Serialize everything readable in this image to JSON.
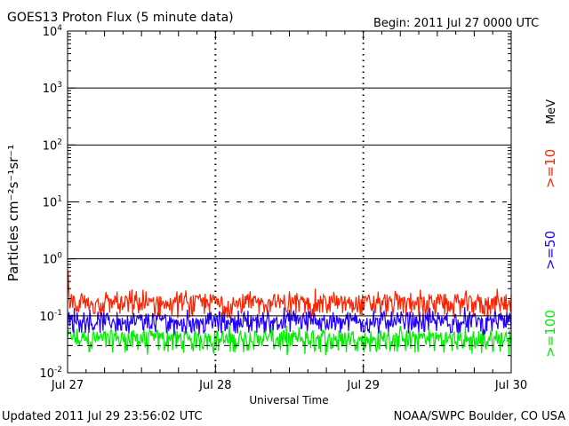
{
  "chart_data": {
    "type": "line",
    "title": "GOES13 Proton Flux (5 minute data)",
    "begin_label": "Begin: 2011 Jul 27 0000 UTC",
    "xlabel": "Universal Time",
    "ylabel": "Particles cm⁻²s⁻¹sr⁻¹",
    "yscale": "log",
    "ylim": [
      0.01,
      10000
    ],
    "yticks": [
      {
        "base": "10",
        "exp": "-2"
      },
      {
        "base": "10",
        "exp": "-1"
      },
      {
        "base": "10",
        "exp": "0"
      },
      {
        "base": "10",
        "exp": "1"
      },
      {
        "base": "10",
        "exp": "2"
      },
      {
        "base": "10",
        "exp": "3"
      },
      {
        "base": "10",
        "exp": "4"
      }
    ],
    "xticks": [
      "Jul 27",
      "Jul 28",
      "Jul 29",
      "Jul 30"
    ],
    "xlim": [
      "2011-07-27T00:00Z",
      "2011-07-30T00:00Z"
    ],
    "legend": {
      "unit": "MeV",
      "entries": [
        {
          "label": ">=10",
          "color": "#ff2200"
        },
        {
          "label": ">=50",
          "color": "#2200ff"
        },
        {
          "label": ">=100",
          "color": "#00ee00"
        }
      ]
    },
    "series": [
      {
        "label": ">=10",
        "color": "#ff2200",
        "baseline": 0.15,
        "range": [
          0.09,
          0.3
        ],
        "peak": 0.6
      },
      {
        "label": ">=50",
        "color": "#2200ff",
        "baseline": 0.07,
        "range": [
          0.045,
          0.15
        ]
      },
      {
        "label": ">=100",
        "color": "#00ee00",
        "baseline": 0.035,
        "range": [
          0.02,
          0.07
        ]
      }
    ],
    "threshold_lines": [
      0.1,
      1,
      10,
      100,
      1000
    ],
    "grid": true
  },
  "footer": {
    "updated": "Updated 2011 Jul 29 23:56:02 UTC",
    "credit": "NOAA/SWPC Boulder, CO USA"
  }
}
